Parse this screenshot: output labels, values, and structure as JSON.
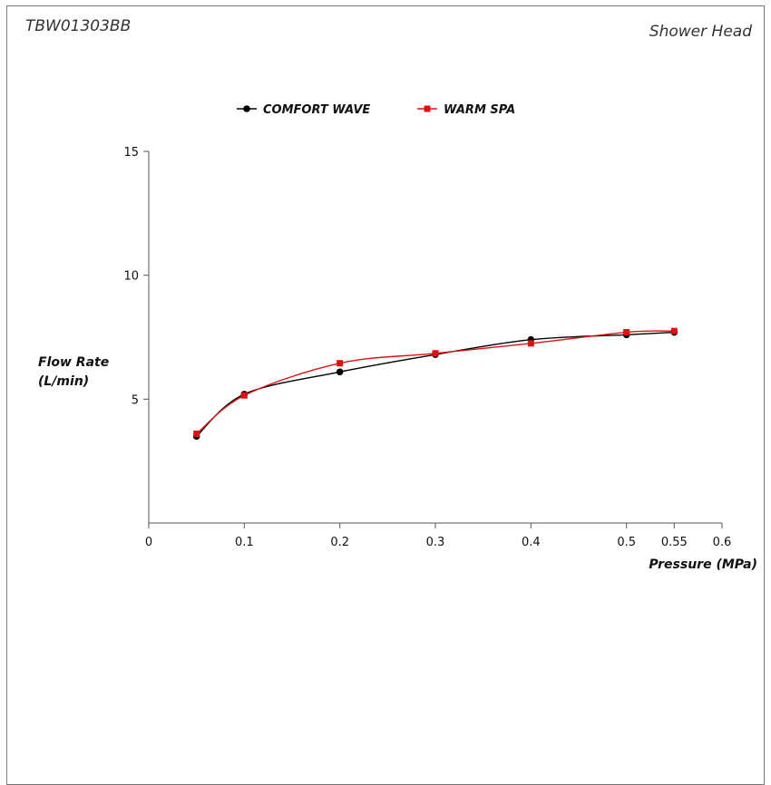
{
  "header": {
    "model_code": "TBW01303BB",
    "product_type": "Shower Head"
  },
  "chart_data": {
    "type": "line",
    "title": "",
    "xlabel": "Pressure (MPa)",
    "ylabel_line1": "Flow Rate",
    "ylabel_line2": "(L/min)",
    "xlim": [
      0,
      0.6
    ],
    "ylim": [
      0,
      15
    ],
    "x_ticks": [
      0,
      0.1,
      0.2,
      0.3,
      0.4,
      0.5,
      0.55,
      0.6
    ],
    "x_tick_labels": [
      "0",
      "0.1",
      "0.2",
      "0.3",
      "0.4",
      "0.5",
      "0.55",
      "0.6"
    ],
    "y_ticks": [
      5,
      10,
      15
    ],
    "y_tick_labels": [
      "5",
      "10",
      "15"
    ],
    "grid": false,
    "legend_position": "top-center",
    "series": [
      {
        "name": "COMFORT WAVE",
        "color": "#000000",
        "marker": "circle",
        "points": [
          {
            "x": 0.05,
            "y": 3.5
          },
          {
            "x": 0.1,
            "y": 5.2
          },
          {
            "x": 0.2,
            "y": 6.1
          },
          {
            "x": 0.3,
            "y": 6.8
          },
          {
            "x": 0.4,
            "y": 7.4
          },
          {
            "x": 0.5,
            "y": 7.6
          },
          {
            "x": 0.55,
            "y": 7.7
          }
        ]
      },
      {
        "name": "WARM SPA",
        "color": "#dd1111",
        "marker": "square",
        "points": [
          {
            "x": 0.05,
            "y": 3.6
          },
          {
            "x": 0.1,
            "y": 5.15
          },
          {
            "x": 0.2,
            "y": 6.45
          },
          {
            "x": 0.3,
            "y": 6.85
          },
          {
            "x": 0.4,
            "y": 7.25
          },
          {
            "x": 0.5,
            "y": 7.7
          },
          {
            "x": 0.55,
            "y": 7.75
          }
        ]
      }
    ]
  }
}
